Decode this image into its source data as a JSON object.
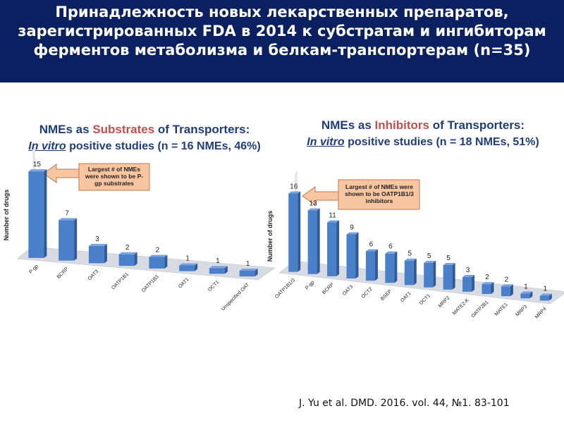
{
  "slide": {
    "title": "Принадлежность новых лекарственных препаратов, зарегистрированных FDA в 2014 к субстратам и ингибиторам ферментов метаболизма и белкам-транспортерам (n=35)",
    "citation": "J. Yu et al. DMD. 2016. vol. 44, №1. 83-101",
    "colors": {
      "header_bg": "#0a2060",
      "bar": "#4a7fc9",
      "callout_fill": "#f7c5a0",
      "callout_border": "#c07a50"
    }
  },
  "chart_data": [
    {
      "type": "bar",
      "title_prefix": "NMEs as ",
      "title_accent": "Substrates",
      "title_suffix": " of Transporters:",
      "subtitle_italic": "In vitro",
      "subtitle_rest": " positive studies (n = 16 NMEs, 46%)",
      "ylabel": "Number of drugs",
      "callout": "Largest # of NMEs were shown to be P-gp substrates",
      "categories": [
        "P-gp",
        "BCRP",
        "OAT3",
        "OATP1B1",
        "OATP1B3",
        "OAT1",
        "OCT1",
        "Unspecified OAT"
      ],
      "values": [
        15,
        7,
        3,
        2,
        2,
        1,
        1,
        1
      ],
      "ylim": [
        0,
        16
      ],
      "grid": false,
      "legend": "none"
    },
    {
      "type": "bar",
      "title_prefix": "NMEs as ",
      "title_accent": "Inhibitors",
      "title_suffix": " of Transporters:",
      "subtitle_italic": "In vitro",
      "subtitle_rest": " positive studies (n = 18 NMEs, 51%)",
      "ylabel": "Number of drugs",
      "callout": "Largest # of NMEs were shown to be OATP1B1/3 inhibitors",
      "categories": [
        "OATP1B1/3",
        "P-gp",
        "BCRP",
        "OAT3",
        "OCT2",
        "BSEP",
        "OAT1",
        "OCT1",
        "MRP2",
        "MATE2-K",
        "OATP2B1",
        "MATE1",
        "MRP3",
        "MRP4"
      ],
      "values": [
        16,
        13,
        11,
        9,
        6,
        6,
        5,
        5,
        5,
        3,
        2,
        2,
        1,
        1
      ],
      "ylim": [
        0,
        17
      ],
      "grid": false,
      "legend": "none"
    }
  ]
}
